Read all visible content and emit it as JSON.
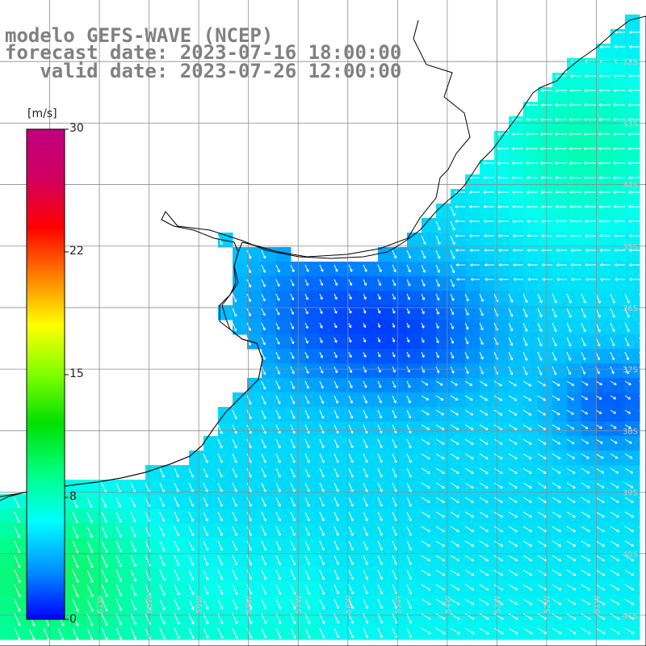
{
  "title": {
    "line1": "modelo GEFS-WAVE (NCEP)",
    "line2": "forecast date: 2023-07-16 18:00:00",
    "line3": "   valid date: 2023-07-26 12:00:00"
  },
  "colorbar": {
    "unit": "[m/s]",
    "ticks": [
      {
        "label": "30",
        "value": 30
      },
      {
        "label": "22",
        "value": 22
      },
      {
        "label": "15",
        "value": 15
      },
      {
        "label": "8",
        "value": 8
      },
      {
        "label": "0",
        "value": 0
      }
    ],
    "colors": [
      "#0000ff",
      "#0090ff",
      "#00ffff",
      "#00ff80",
      "#00e000",
      "#80ff00",
      "#ffff00",
      "#ff8000",
      "#ff0000",
      "#d00060",
      "#c00080"
    ]
  },
  "lat_labels": [
    "32S",
    "33S",
    "34S",
    "35S",
    "36S",
    "37S",
    "38S",
    "39S",
    "40S",
    "41S"
  ],
  "lon_labels": [
    "62W",
    "61W",
    "60W",
    "59W",
    "58W",
    "57W",
    "56W",
    "55W",
    "54W",
    "53W",
    "52W",
    "51W"
  ],
  "map_extent": {
    "lon_min": -63.0,
    "lon_max": -50.0,
    "lat_min": -41.5,
    "lat_max": -31.0
  },
  "legend_colors": {
    "land": "#ffffff",
    "coast": "#000000",
    "grid": "#8c8c8c",
    "arrow": "#ffffff",
    "label": "#c8c8c8"
  }
}
